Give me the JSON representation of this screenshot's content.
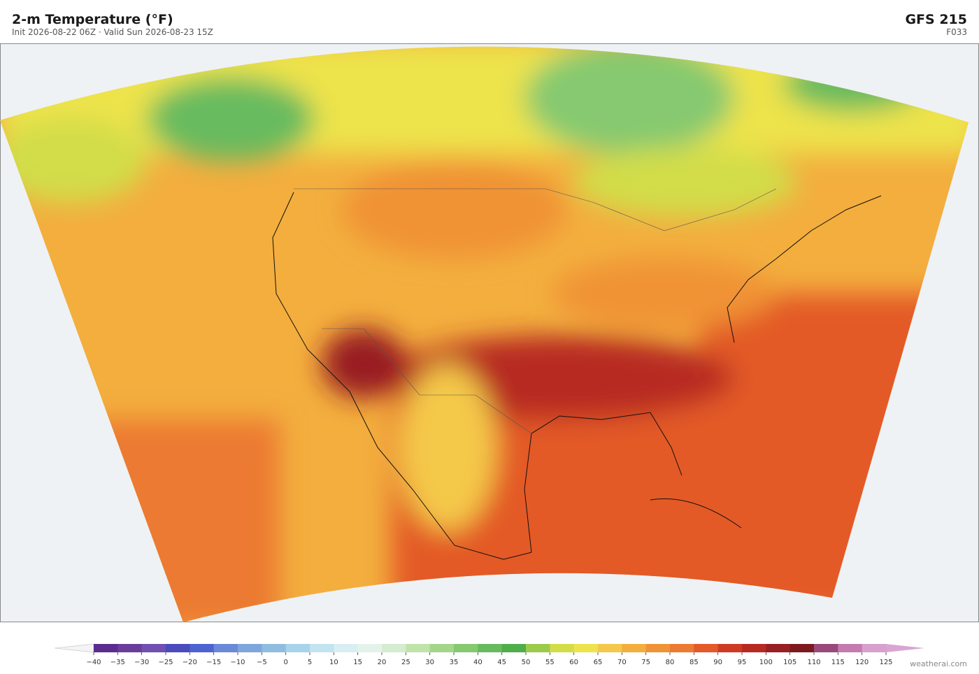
{
  "header": {
    "title": "2-m Temperature  (°F)",
    "subtitle": "Init 2026-08-22 06Z  ·  Valid Sun 2026-08-23 15Z",
    "model": "GFS  215",
    "forecast_hour": "F033"
  },
  "colorbar": {
    "ticks": [
      {
        "value": -40,
        "label": "−40"
      },
      {
        "value": -35,
        "label": "−35"
      },
      {
        "value": -30,
        "label": "−30"
      },
      {
        "value": -25,
        "label": "−25"
      },
      {
        "value": -20,
        "label": "−20"
      },
      {
        "value": -15,
        "label": "−15"
      },
      {
        "value": -10,
        "label": "−10"
      },
      {
        "value": -5,
        "label": "−5"
      },
      0,
      5,
      10,
      15,
      20,
      25,
      30,
      35,
      40,
      45,
      50,
      55,
      60,
      65,
      70,
      75,
      80,
      85,
      90,
      95,
      100,
      105,
      110,
      115,
      120,
      125
    ],
    "colors": [
      "#5b2c8f",
      "#6a3d9a",
      "#7050b0",
      "#4a4bbd",
      "#4d63d0",
      "#6a8ad8",
      "#7fa6dc",
      "#8fbde0",
      "#a8d3ea",
      "#c2e3f0",
      "#d8eef2",
      "#e4f3ea",
      "#d5ecd0",
      "#bfe3a8",
      "#a3d68a",
      "#86c96f",
      "#67bb5e",
      "#4fae4a",
      "#9ccb4c",
      "#d2dd48",
      "#ede34b",
      "#f4c84a",
      "#f3ae3e",
      "#f09336",
      "#ec7a32",
      "#e35a28",
      "#cf3b22",
      "#b72a22",
      "#981f22",
      "#7d1a1e",
      "#9a4a7a",
      "#c57bb0",
      "#d8a0cc"
    ]
  },
  "footer": {
    "credit": "weatherai.com"
  }
}
